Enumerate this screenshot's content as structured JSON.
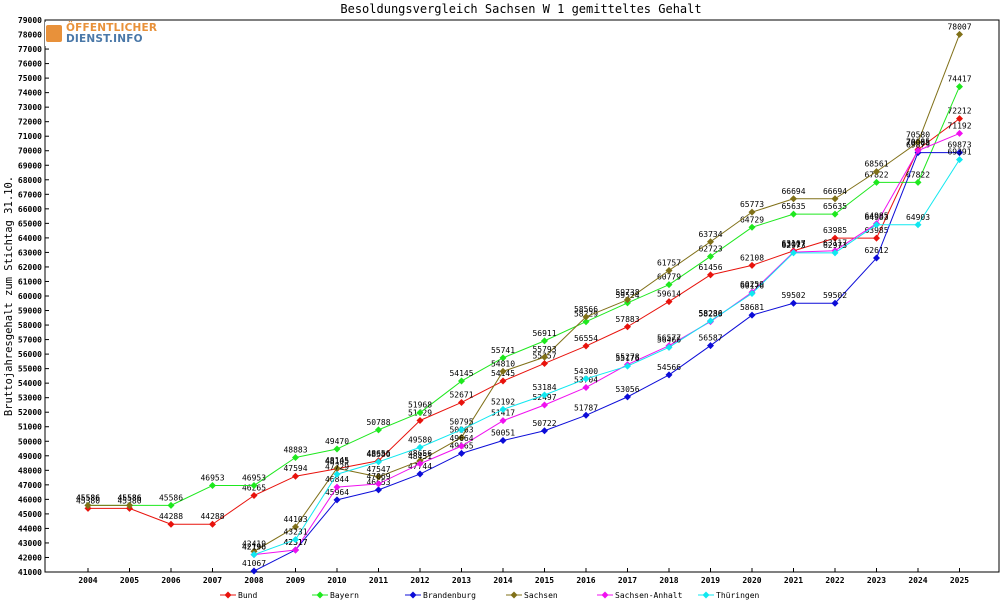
{
  "logo": {
    "line1": "ÖFFENTLICHER",
    "line2": "DIENST.INFO"
  },
  "chart_data": {
    "type": "line",
    "title": "Besoldungsvergleich Sachsen W 1 gemitteltes Gehalt",
    "xlabel": "",
    "ylabel": "Bruttojahresgehalt zum Stichtag 31.10.",
    "ylim": [
      41000,
      79000
    ],
    "ytick_step": 1000,
    "grid": false,
    "legend": "bottom",
    "categories": [
      "2004",
      "2005",
      "2006",
      "2007",
      "2008",
      "2009",
      "2010",
      "2011",
      "2012",
      "2013",
      "2014",
      "2015",
      "2016",
      "2017",
      "2018",
      "2019",
      "2020",
      "2021",
      "2022",
      "2023",
      "2024",
      "2025"
    ],
    "series": [
      {
        "name": "Bund",
        "color": "#e8120c",
        "values": [
          45380,
          45380,
          44288,
          44288,
          46265,
          47594,
          48105,
          48656,
          51429,
          52671,
          54145,
          55357,
          56554,
          57883,
          59614,
          61456,
          62108,
          63107,
          63985,
          63985,
          70085,
          72212
        ]
      },
      {
        "name": "Bayern",
        "color": "#1ee81e",
        "values": [
          45586,
          45586,
          45586,
          46953,
          46953,
          48883,
          49470,
          50788,
          51968,
          54145,
          55741,
          56911,
          58229,
          59524,
          60779,
          62723,
          64729,
          65635,
          65635,
          67822,
          67822,
          74417
        ]
      },
      {
        "name": "Brandenburg",
        "color": "#0c0cd8",
        "values": [
          null,
          null,
          null,
          null,
          41067,
          42517,
          45964,
          46653,
          47744,
          49165,
          50051,
          50722,
          51787,
          53056,
          54566,
          56587,
          58681,
          59502,
          59502,
          62612,
          69873,
          69873
        ]
      },
      {
        "name": "Sachsen",
        "color": "#807018",
        "values": [
          45586,
          45586,
          null,
          null,
          42419,
          44103,
          48145,
          47547,
          48656,
          50263,
          54810,
          55793,
          58566,
          59738,
          61757,
          63734,
          65773,
          66694,
          66694,
          68561,
          70580,
          78007
        ]
      },
      {
        "name": "Sachsen-Anhalt",
        "color": "#f010f0",
        "values": [
          null,
          null,
          null,
          null,
          42196,
          42517,
          46844,
          47069,
          48451,
          49664,
          51417,
          52497,
          53704,
          55278,
          56577,
          58238,
          60259,
          63017,
          63117,
          64985,
          70008,
          71192
        ]
      },
      {
        "name": "Thüringen",
        "color": "#10e8f0",
        "values": [
          null,
          null,
          null,
          null,
          42196,
          43231,
          47729,
          48580,
          49580,
          50795,
          52192,
          53184,
          54300,
          55176,
          56466,
          58286,
          60176,
          62973,
          62973,
          64903,
          64903,
          69391
        ]
      }
    ]
  }
}
